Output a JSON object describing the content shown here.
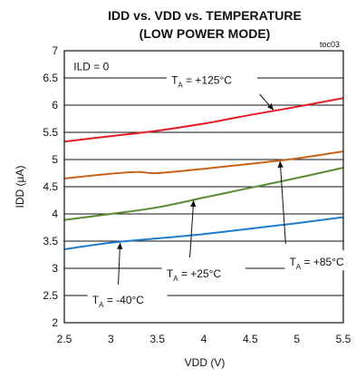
{
  "chart_data": {
    "type": "line",
    "title": "IDD vs. VDD vs. TEMPERATURE",
    "subtitle": "(LOW POWER MODE)",
    "code": "toc03",
    "xlabel": "VDD (V)",
    "ylabel": "IDD (µA)",
    "xlim": [
      2.5,
      5.5
    ],
    "ylim": [
      2,
      7
    ],
    "xticks": [
      "2.5",
      "3",
      "3.5",
      "4",
      "4.5",
      "5",
      "5.5"
    ],
    "yticks": [
      "2",
      "2.5",
      "3",
      "3.5",
      "4",
      "4.5",
      "5",
      "5.5",
      "6",
      "6.5",
      "7"
    ],
    "grid": "horizontal",
    "condition_label": "ILD = 0",
    "series": [
      {
        "label_main": "T",
        "label_sub": "A",
        "label_rest": " = +125°C",
        "color": "#e31b23",
        "x": [
          2.5,
          3.0,
          3.5,
          4.0,
          4.5,
          5.0,
          5.5
        ],
        "y": [
          5.33,
          5.43,
          5.53,
          5.66,
          5.82,
          5.97,
          6.13
        ]
      },
      {
        "label_main": "T",
        "label_sub": "A",
        "label_rest": " = +85°C",
        "color": "#c9621a",
        "x": [
          2.5,
          3.0,
          3.3,
          3.5,
          4.0,
          4.5,
          5.0,
          5.5
        ],
        "y": [
          4.65,
          4.74,
          4.77,
          4.75,
          4.83,
          4.92,
          5.02,
          5.15
        ]
      },
      {
        "label_main": "T",
        "label_sub": "A",
        "label_rest": " = +25°C",
        "color": "#5b8a35",
        "x": [
          2.5,
          3.0,
          3.5,
          4.0,
          4.5,
          5.0,
          5.5
        ],
        "y": [
          3.89,
          4.0,
          4.12,
          4.3,
          4.48,
          4.66,
          4.85
        ]
      },
      {
        "label_main": "T",
        "label_sub": "A",
        "label_rest": " = -40°C",
        "color": "#1f7cc8",
        "x": [
          2.5,
          3.0,
          3.5,
          4.0,
          4.5,
          5.0,
          5.5
        ],
        "y": [
          3.35,
          3.47,
          3.55,
          3.63,
          3.73,
          3.83,
          3.94
        ]
      }
    ]
  }
}
